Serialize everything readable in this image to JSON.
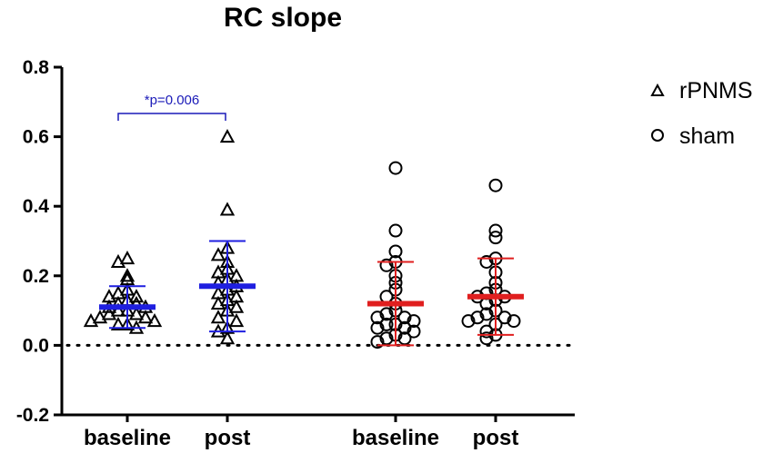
{
  "chart_data": {
    "type": "scatter",
    "title": "RC slope",
    "xlabel": "",
    "ylabel": "",
    "ylim": [
      -0.2,
      0.8
    ],
    "yticks": [
      "0.8",
      "0.6",
      "0.4",
      "0.2",
      "0.0",
      "-0.2"
    ],
    "ytick_values": [
      0.8,
      0.6,
      0.4,
      0.2,
      0.0,
      -0.2
    ],
    "reference_line": 0.0,
    "colors": {
      "rPNMS": "#1f1fe0",
      "sham": "#e01f1f",
      "points": "#000000",
      "annotation": "#1a1ab8"
    },
    "legend": [
      {
        "name": "rPNMS",
        "marker": "triangle"
      },
      {
        "name": "sham",
        "marker": "circle"
      }
    ],
    "groups": [
      {
        "label": "baseline",
        "series": "rPNMS",
        "marker": "triangle",
        "mean": 0.11,
        "sd_low": 0.05,
        "sd_high": 0.17,
        "values": [
          0.25,
          0.24,
          0.2,
          0.19,
          0.16,
          0.15,
          0.14,
          0.14,
          0.13,
          0.12,
          0.12,
          0.11,
          0.11,
          0.1,
          0.1,
          0.09,
          0.09,
          0.08,
          0.08,
          0.07,
          0.07,
          0.06,
          0.06,
          0.05
        ]
      },
      {
        "label": "post",
        "series": "rPNMS",
        "marker": "triangle",
        "mean": 0.17,
        "sd_low": 0.04,
        "sd_high": 0.3,
        "values": [
          0.6,
          0.39,
          0.28,
          0.26,
          0.24,
          0.22,
          0.21,
          0.2,
          0.19,
          0.18,
          0.17,
          0.16,
          0.15,
          0.14,
          0.13,
          0.12,
          0.11,
          0.1,
          0.08,
          0.07,
          0.05,
          0.04,
          0.02
        ]
      },
      {
        "label": "baseline",
        "series": "sham",
        "marker": "circle",
        "mean": 0.12,
        "sd_low": 0.0,
        "sd_high": 0.24,
        "values": [
          0.51,
          0.33,
          0.27,
          0.24,
          0.23,
          0.2,
          0.18,
          0.16,
          0.14,
          0.12,
          0.1,
          0.09,
          0.08,
          0.08,
          0.07,
          0.06,
          0.06,
          0.05,
          0.05,
          0.04,
          0.03,
          0.02,
          0.02,
          0.01
        ]
      },
      {
        "label": "post",
        "series": "sham",
        "marker": "circle",
        "mean": 0.14,
        "sd_low": 0.03,
        "sd_high": 0.25,
        "values": [
          0.46,
          0.33,
          0.31,
          0.25,
          0.24,
          0.21,
          0.18,
          0.16,
          0.15,
          0.14,
          0.14,
          0.13,
          0.12,
          0.1,
          0.09,
          0.08,
          0.08,
          0.07,
          0.07,
          0.06,
          0.04,
          0.03,
          0.02
        ]
      }
    ],
    "annotation": {
      "text": "*p=0.006",
      "between": [
        0,
        1
      ]
    }
  }
}
